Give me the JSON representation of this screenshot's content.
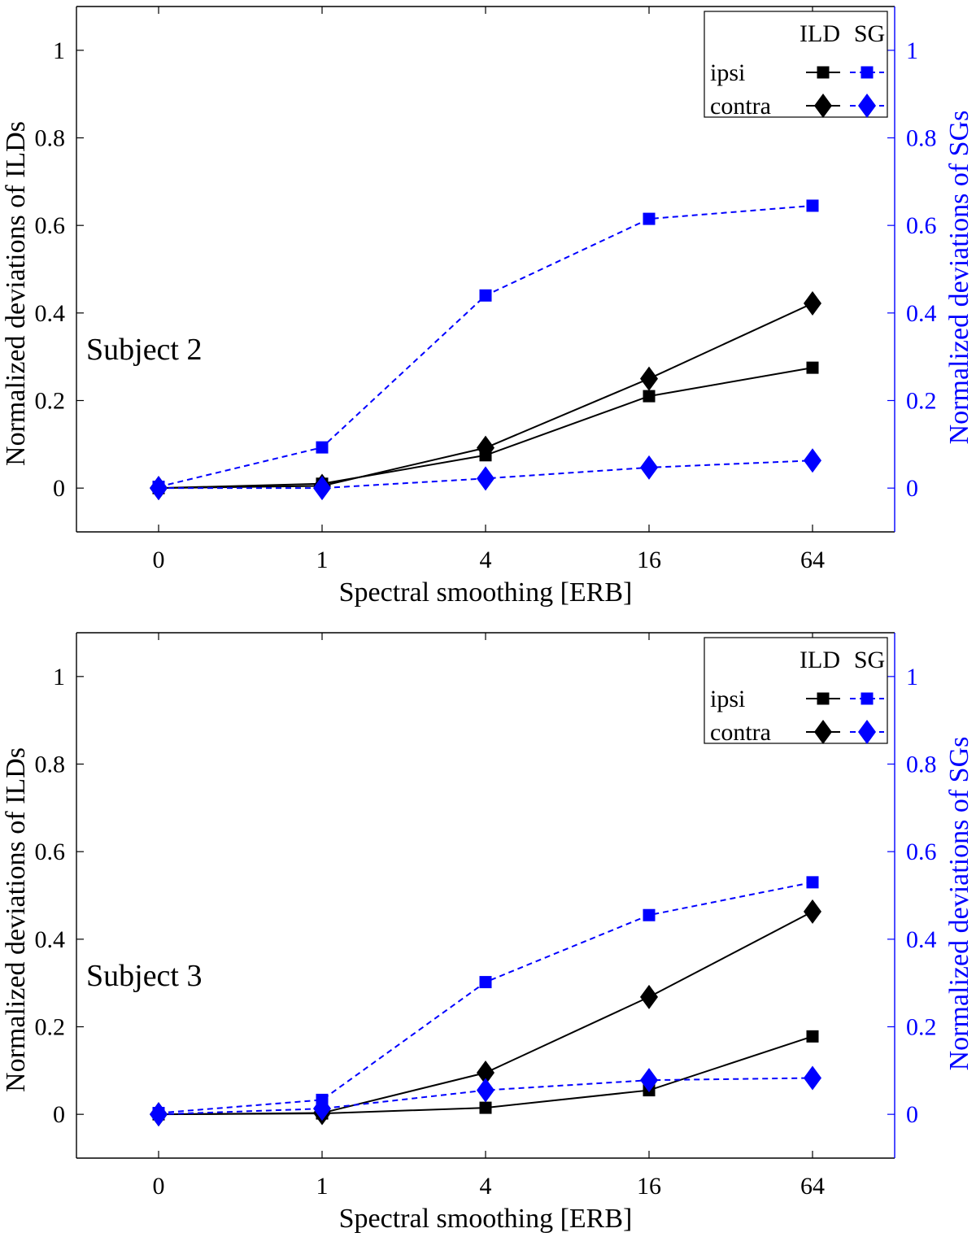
{
  "chart_data": [
    {
      "type": "line",
      "annotation": "Subject 2",
      "xlabel": "Spectral smoothing [ERB]",
      "ylabel": "Normalized deviations of ILDs",
      "ylabel_right": "Normalized deviations of SGs",
      "categories": [
        "0",
        "1",
        "4",
        "16",
        "64"
      ],
      "ylim": [
        -0.1,
        1.1
      ],
      "ylim_right": [
        -0.1,
        1.1
      ],
      "yticks": [
        "0",
        "0.2",
        "0.4",
        "0.6",
        "0.8",
        "1"
      ],
      "yticks_right": [
        "0",
        "0.2",
        "0.4",
        "0.6",
        "0.8",
        "1"
      ],
      "grid": false,
      "legend": {
        "placement": "top-right",
        "col_headers": [
          "ILD",
          "SG"
        ],
        "row_labels": [
          "ipsi",
          "contra"
        ]
      },
      "series": [
        {
          "key": "ILD_ipsi",
          "axis": "left",
          "marker": "square",
          "style": "solid",
          "color": "#000000",
          "values": [
            0,
            0.01,
            0.075,
            0.21,
            0.275
          ]
        },
        {
          "key": "ILD_contra",
          "axis": "left",
          "marker": "diamond",
          "style": "solid",
          "color": "#000000",
          "values": [
            0,
            0.005,
            0.092,
            0.25,
            0.422
          ]
        },
        {
          "key": "SG_ipsi",
          "axis": "right",
          "marker": "square",
          "style": "dashed",
          "color": "#0000ff",
          "values": [
            0.003,
            0.093,
            0.44,
            0.615,
            0.645
          ]
        },
        {
          "key": "SG_contra",
          "axis": "right",
          "marker": "diamond",
          "style": "dashed",
          "color": "#0000ff",
          "values": [
            0,
            0,
            0.022,
            0.047,
            0.063
          ]
        }
      ]
    },
    {
      "type": "line",
      "annotation": "Subject 3",
      "xlabel": "Spectral smoothing [ERB]",
      "ylabel": "Normalized deviations of ILDs",
      "ylabel_right": "Normalized deviations of SGs",
      "categories": [
        "0",
        "1",
        "4",
        "16",
        "64"
      ],
      "ylim": [
        -0.1,
        1.1
      ],
      "ylim_right": [
        -0.1,
        1.1
      ],
      "yticks": [
        "0",
        "0.2",
        "0.4",
        "0.6",
        "0.8",
        "1"
      ],
      "yticks_right": [
        "0",
        "0.2",
        "0.4",
        "0.6",
        "0.8",
        "1"
      ],
      "grid": false,
      "legend": {
        "placement": "top-right",
        "col_headers": [
          "ILD",
          "SG"
        ],
        "row_labels": [
          "ipsi",
          "contra"
        ]
      },
      "series": [
        {
          "key": "ILD_ipsi",
          "axis": "left",
          "marker": "square",
          "style": "solid",
          "color": "#000000",
          "values": [
            0,
            0.002,
            0.015,
            0.055,
            0.178
          ]
        },
        {
          "key": "ILD_contra",
          "axis": "left",
          "marker": "diamond",
          "style": "solid",
          "color": "#000000",
          "values": [
            0,
            0.003,
            0.095,
            0.268,
            0.463
          ]
        },
        {
          "key": "SG_ipsi",
          "axis": "right",
          "marker": "square",
          "style": "dashed",
          "color": "#0000ff",
          "values": [
            0.003,
            0.033,
            0.302,
            0.455,
            0.53
          ]
        },
        {
          "key": "SG_contra",
          "axis": "right",
          "marker": "diamond",
          "style": "dashed",
          "color": "#0000ff",
          "values": [
            0,
            0.013,
            0.055,
            0.078,
            0.083
          ]
        }
      ]
    }
  ]
}
